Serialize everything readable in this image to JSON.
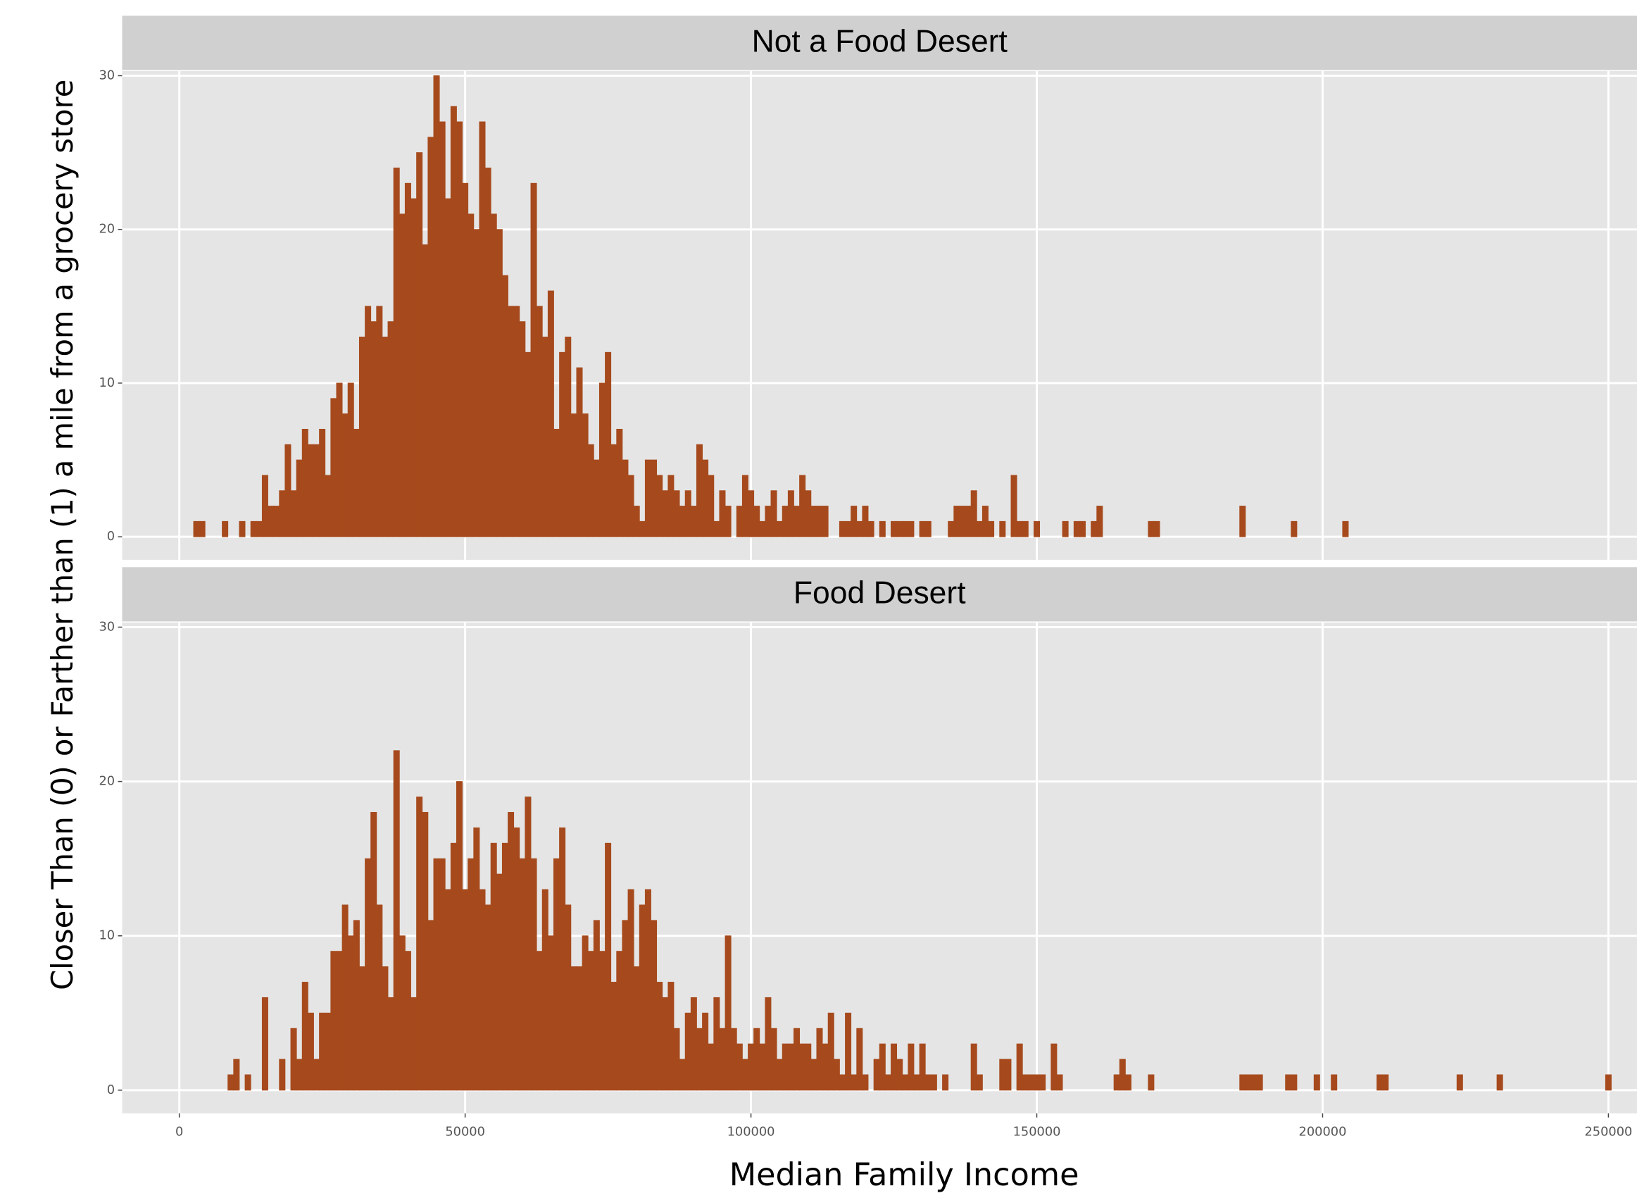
{
  "chart_data": {
    "type": "histogram",
    "x_label": "Median Family Income",
    "y_label": "Closer Than (0) or Farther than (1) a mile from a grocery store",
    "bins": [
      2500,
      3500,
      4500,
      5500,
      6500,
      7500,
      8500,
      9500,
      10500,
      11500,
      12500,
      13500,
      14500,
      15500,
      16500,
      17500,
      18500,
      19500,
      20500,
      21500,
      22500,
      23500,
      24500,
      25500,
      26500,
      27500,
      28500,
      29500,
      30500,
      31500,
      32500,
      33500,
      34500,
      35500,
      36500,
      37500,
      38500,
      39500,
      40500,
      41500,
      42500,
      43500,
      44500,
      45500,
      46500,
      47500,
      48500,
      49500,
      50500,
      51500,
      52500,
      53500,
      54500,
      55500,
      56500,
      57500,
      58500,
      59500,
      60500,
      61500,
      62500,
      63500,
      64500,
      65500,
      66500,
      67500,
      68500,
      69500,
      70500,
      71500,
      72500,
      73500,
      74500,
      75500,
      76500,
      77500,
      78500,
      79500,
      80500,
      81500,
      82500,
      83500,
      84500,
      85500,
      86500,
      87500,
      88500,
      89500,
      90500,
      91500,
      92500,
      93500,
      94500,
      95500,
      96500,
      97500,
      98500,
      99500,
      100500,
      101500,
      102500,
      103500,
      104500,
      105500,
      106500,
      107500,
      108500,
      109500,
      110500,
      111500,
      112500,
      113500,
      114500,
      115500,
      116500,
      117500,
      118500,
      119500,
      120500,
      121500,
      122500,
      123500,
      124500,
      125500,
      126500,
      127500,
      128500,
      129500,
      130500,
      131500,
      132500,
      133500,
      134500,
      135500,
      136500,
      137500,
      138500,
      139500,
      140500,
      141500,
      142500,
      143500,
      144500,
      145500,
      146500,
      147500,
      148500,
      149500,
      150500,
      151500,
      152500,
      153500,
      154500,
      155500,
      156500,
      157500,
      158500,
      159500,
      160500,
      161500,
      162500,
      163500,
      164500,
      165500,
      166500,
      167500,
      168500,
      169500,
      170500,
      171500,
      172500,
      173500,
      174500,
      175500,
      176500,
      177500,
      178500,
      179500,
      180500,
      181500,
      182500,
      183500,
      184500,
      185500,
      186500,
      187500,
      188500,
      189500,
      190500,
      191500,
      192500,
      193500,
      194500,
      195500,
      196500,
      197500,
      198500,
      199500,
      200500,
      201500,
      202500,
      203500,
      204500,
      205500,
      206500,
      207500,
      208500,
      209500,
      210500,
      211500,
      212500,
      213500,
      214500,
      215500,
      216500,
      217500,
      218500,
      219500,
      220500,
      221500,
      222500,
      223500,
      224500,
      225500,
      226500,
      227500,
      228500,
      229500,
      230500,
      231500,
      232500,
      233500,
      234500,
      235500,
      236500,
      237500,
      238500,
      239500,
      240500,
      241500,
      242500,
      243500,
      244500,
      245500,
      246500,
      247500,
      248500,
      249500,
      250500
    ],
    "series": [
      {
        "name": "Not a Food Desert",
        "color": "#a64a1d",
        "values": [
          1,
          1,
          0,
          0,
          0,
          1,
          0,
          0,
          1,
          0,
          1,
          1,
          4,
          2,
          2,
          3,
          6,
          3,
          5,
          7,
          6,
          6,
          7,
          4,
          9,
          10,
          8,
          10,
          7,
          13,
          15,
          14,
          15,
          13,
          14,
          24,
          21,
          23,
          22,
          25,
          19,
          26,
          30,
          27,
          22,
          28,
          27,
          23,
          21,
          20,
          27,
          24,
          21,
          20,
          17,
          15,
          15,
          14,
          12,
          23,
          15,
          13,
          16,
          7,
          12,
          13,
          8,
          11,
          8,
          6,
          5,
          10,
          12,
          6,
          7,
          5,
          4,
          2,
          1,
          5,
          5,
          4,
          3,
          4,
          3,
          2,
          3,
          2,
          6,
          5,
          4,
          1,
          3,
          2,
          0,
          2,
          4,
          3,
          2,
          1,
          2,
          3,
          1,
          2,
          3,
          2,
          4,
          3,
          2,
          2,
          2,
          0,
          0,
          1,
          1,
          2,
          1,
          2,
          1,
          0,
          1,
          0,
          1,
          1,
          1,
          1,
          0,
          1,
          1,
          0,
          0,
          0,
          1,
          2,
          2,
          2,
          3,
          1,
          2,
          1,
          0,
          1,
          0,
          4,
          1,
          1,
          0,
          1,
          0,
          0,
          0,
          0,
          1,
          0,
          1,
          1,
          0,
          1,
          2,
          0,
          0,
          0,
          0,
          0,
          0,
          0,
          0,
          1,
          1,
          0,
          0,
          0,
          0,
          0,
          0,
          0,
          0,
          0,
          0,
          0,
          0,
          0,
          0,
          2,
          0,
          0,
          0,
          0,
          0,
          0,
          0,
          0,
          1,
          0,
          0,
          0,
          0,
          0,
          0,
          0,
          0,
          1,
          0,
          0,
          0,
          0,
          0,
          0,
          0,
          0,
          0,
          0,
          0,
          0,
          0,
          0,
          0,
          0,
          0,
          0,
          0,
          0,
          0,
          0,
          0,
          0,
          0,
          0,
          0,
          0,
          0,
          0,
          0,
          0,
          0,
          0,
          0,
          0,
          0,
          0,
          0,
          0,
          0,
          0,
          0,
          0,
          0,
          0
        ]
      },
      {
        "name": "Food Desert",
        "color": "#a64a1d",
        "values": [
          0,
          0,
          0,
          0,
          0,
          0,
          1,
          2,
          0,
          1,
          0,
          0,
          6,
          0,
          0,
          2,
          0,
          4,
          2,
          7,
          5,
          2,
          5,
          5,
          9,
          9,
          12,
          10,
          11,
          8,
          15,
          18,
          12,
          8,
          6,
          22,
          10,
          9,
          6,
          19,
          18,
          11,
          15,
          15,
          13,
          16,
          20,
          13,
          15,
          17,
          13,
          12,
          16,
          14,
          16,
          18,
          17,
          15,
          19,
          15,
          9,
          13,
          10,
          15,
          17,
          12,
          8,
          8,
          10,
          9,
          11,
          9,
          16,
          7,
          9,
          11,
          13,
          8,
          12,
          13,
          11,
          7,
          6,
          7,
          4,
          2,
          5,
          6,
          4,
          5,
          3,
          6,
          4,
          10,
          4,
          3,
          2,
          3,
          4,
          3,
          6,
          4,
          2,
          3,
          3,
          4,
          3,
          3,
          2,
          4,
          3,
          5,
          2,
          1,
          5,
          1,
          4,
          1,
          0,
          2,
          3,
          1,
          3,
          2,
          1,
          3,
          1,
          3,
          1,
          1,
          0,
          1,
          0,
          0,
          0,
          0,
          3,
          1,
          0,
          0,
          0,
          2,
          2,
          0,
          3,
          1,
          1,
          1,
          1,
          0,
          3,
          1,
          0,
          0,
          0,
          0,
          0,
          0,
          0,
          0,
          0,
          1,
          2,
          1,
          0,
          0,
          0,
          1,
          0,
          0,
          0,
          0,
          0,
          0,
          0,
          0,
          0,
          0,
          0,
          0,
          0,
          0,
          0,
          1,
          1,
          1,
          1,
          0,
          0,
          0,
          0,
          1,
          1,
          0,
          0,
          0,
          1,
          0,
          0,
          1,
          0,
          0,
          0,
          0,
          0,
          0,
          0,
          1,
          1,
          0,
          0,
          0,
          0,
          0,
          0,
          0,
          0,
          0,
          0,
          0,
          0,
          1,
          0,
          0,
          0,
          0,
          0,
          0,
          1,
          0,
          0,
          0,
          0,
          0,
          0,
          0,
          0,
          0,
          0,
          0,
          0,
          0,
          0,
          0,
          0,
          0,
          0,
          1
        ]
      }
    ],
    "xlim": [
      -10000,
      255000
    ],
    "xticks": [
      0,
      50000,
      100000,
      150000,
      200000,
      250000
    ],
    "ylim": [
      -1.5,
      30.3
    ],
    "yticks": [
      0,
      10,
      20,
      30
    ],
    "grid": true
  }
}
